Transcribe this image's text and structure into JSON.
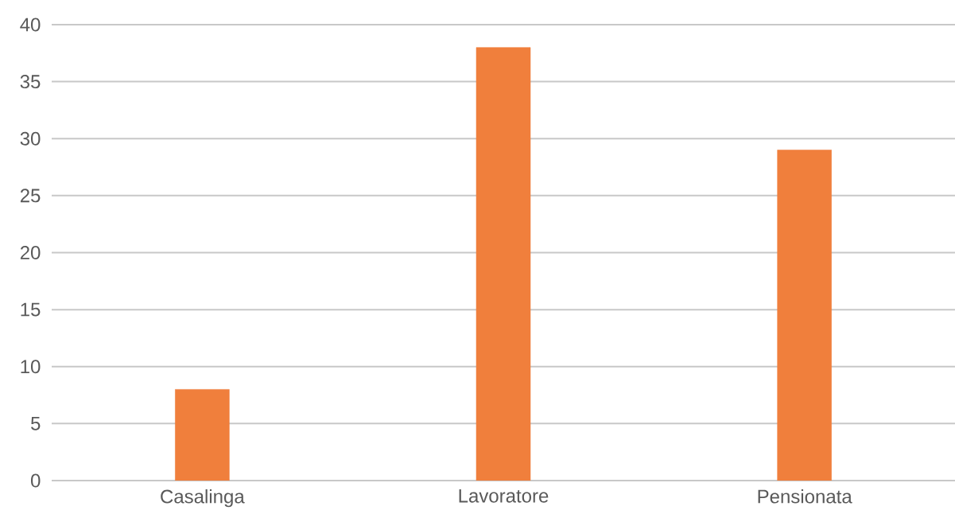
{
  "chart_data": {
    "type": "bar",
    "categories": [
      "Casalinga",
      "Lavoratore",
      "Pensionata"
    ],
    "values": [
      8,
      38,
      29
    ],
    "color": "#f07f3c",
    "ylim": [
      0,
      40
    ],
    "yticks": [
      0,
      5,
      10,
      15,
      20,
      25,
      30,
      35,
      40
    ],
    "grid": "y"
  }
}
